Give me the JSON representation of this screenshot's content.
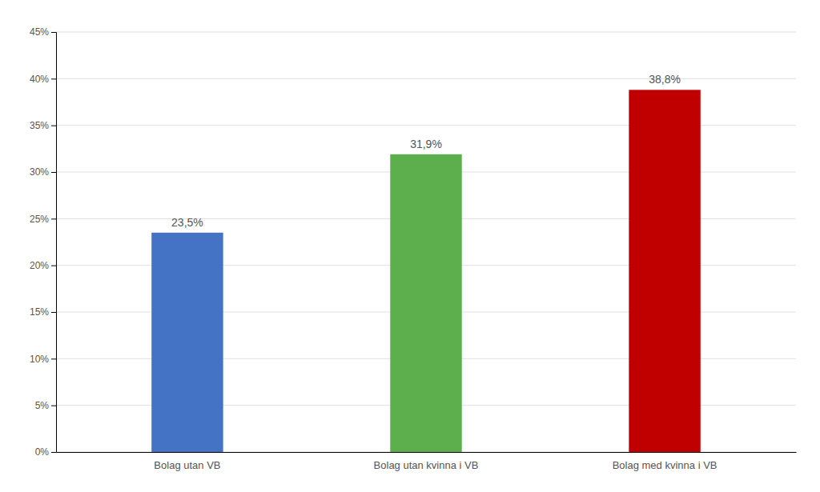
{
  "chart_data": {
    "type": "bar",
    "categories": [
      "Bolag utan VB",
      "Bolag utan kvinna i VB",
      "Bolag med kvinna i VB"
    ],
    "values": [
      23.5,
      31.9,
      38.8
    ],
    "value_labels": [
      "23,5%",
      "31,9%",
      "38,8%"
    ],
    "colors": [
      "#4472C4",
      "#5DAF4E",
      "#C00000"
    ],
    "ylim": [
      0,
      45
    ],
    "yticks": [
      {
        "value": 0,
        "label": "0%"
      },
      {
        "value": 5,
        "label": "5%"
      },
      {
        "value": 10,
        "label": "10%"
      },
      {
        "value": 15,
        "label": "15%"
      },
      {
        "value": 20,
        "label": "20%"
      },
      {
        "value": 25,
        "label": "25%"
      },
      {
        "value": 30,
        "label": "30%"
      },
      {
        "value": 35,
        "label": "35%"
      },
      {
        "value": 40,
        "label": "40%"
      },
      {
        "value": 45,
        "label": "45%"
      }
    ],
    "grid": true,
    "data_labels": true
  }
}
